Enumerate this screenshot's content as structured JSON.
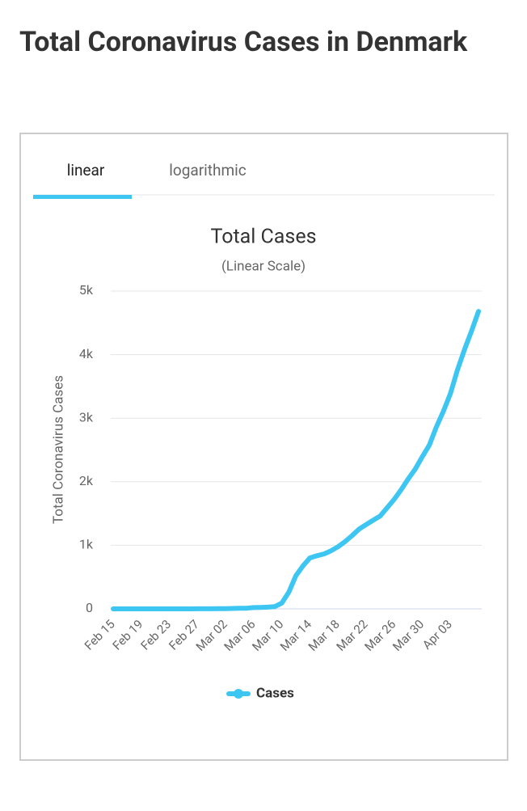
{
  "page_title": "Total Coronavirus Cases in Denmark",
  "tabs": [
    "linear",
    "logarithmic"
  ],
  "chart_data": {
    "type": "line",
    "title": "Total Cases",
    "subtitle": "(Linear Scale)",
    "y_label": "Total Coronavirus Cases",
    "categories": [
      "Feb 15",
      null,
      null,
      null,
      "Feb 19",
      null,
      null,
      null,
      "Feb 23",
      null,
      null,
      null,
      "Feb 27",
      null,
      null,
      null,
      "Mar 02",
      null,
      null,
      null,
      "Mar 06",
      null,
      null,
      null,
      "Mar 10",
      null,
      null,
      null,
      "Mar 14",
      null,
      null,
      null,
      "Mar 18",
      null,
      null,
      null,
      "Mar 22",
      null,
      null,
      null,
      "Mar 26",
      null,
      null,
      null,
      "Mar 30",
      null,
      null,
      null,
      "Apr 03",
      null,
      null,
      null,
      null
    ],
    "series": [
      {
        "name": "Cases",
        "color": "#3ec6f2",
        "values": [
          0,
          0,
          0,
          0,
          0,
          0,
          0,
          0,
          0,
          0,
          0,
          0,
          1,
          1,
          1,
          2,
          4,
          6,
          10,
          10,
          20,
          23,
          27,
          35,
          90,
          262,
          520,
          674,
          801,
          836,
          864,
          914,
          977,
          1057,
          1151,
          1255,
          1326,
          1395,
          1460,
          1591,
          1724,
          1877,
          2046,
          2201,
          2395,
          2577,
          2860,
          3107,
          3386,
          3757,
          4077,
          4369,
          4681
        ]
      }
    ],
    "ylim": [
      0,
      5000
    ],
    "yticks": [
      0,
      {
        "value": 1000,
        "label": "1k"
      },
      {
        "value": 2000,
        "label": "2k"
      },
      {
        "value": 3000,
        "label": "3k"
      },
      {
        "value": 4000,
        "label": "4k"
      },
      {
        "value": 5000,
        "label": "5k"
      }
    ],
    "grid": true
  }
}
